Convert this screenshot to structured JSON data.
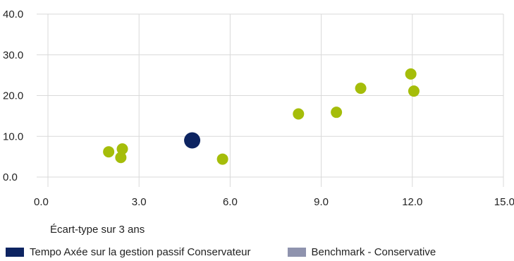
{
  "chart_data": {
    "type": "scatter",
    "xlabel": "Écart-type sur 3 ans",
    "ylabel": "",
    "xlim": [
      0,
      15
    ],
    "ylim": [
      0,
      40
    ],
    "x_ticks": [
      "0.0",
      "3.0",
      "6.0",
      "9.0",
      "12.0",
      "15.0"
    ],
    "y_ticks": [
      "0.0",
      "10.0",
      "20.0",
      "30.0",
      "40.0"
    ],
    "grid": "vertical and horizontal",
    "legend_position": "bottom",
    "series": [
      {
        "name": "Tempo Axée sur la gestion passif Conservateur",
        "color": "#0d2461",
        "points": [
          [
            4.75,
            9.0
          ]
        ]
      },
      {
        "name": "Benchmark - Conservative",
        "color": "#8f93ae",
        "points": []
      },
      {
        "color": "#a5bd0a",
        "points": [
          [
            2.0,
            6.2
          ],
          [
            2.45,
            6.9
          ],
          [
            2.4,
            4.8
          ],
          [
            5.75,
            4.4
          ],
          [
            8.25,
            15.5
          ],
          [
            9.5,
            15.9
          ],
          [
            10.3,
            21.8
          ],
          [
            11.95,
            25.3
          ],
          [
            12.05,
            21.1
          ]
        ]
      }
    ]
  }
}
